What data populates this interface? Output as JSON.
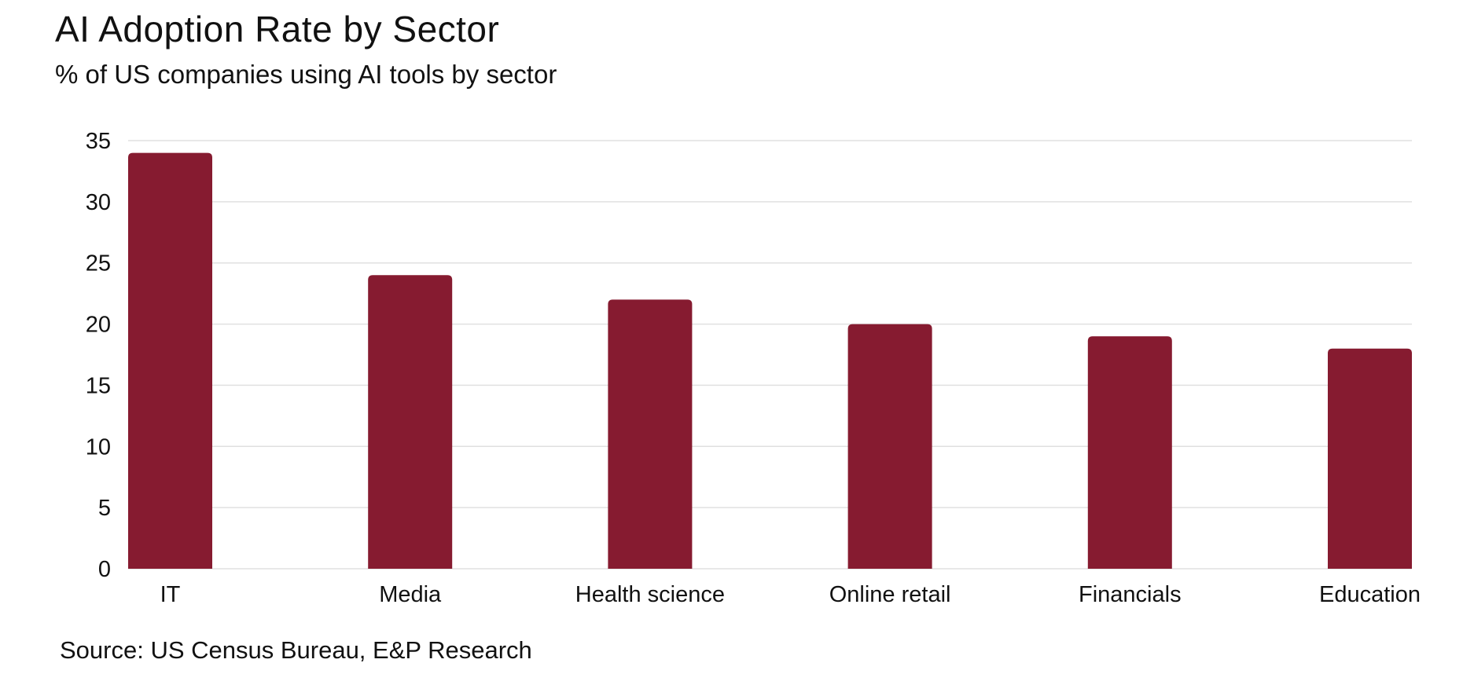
{
  "header": {
    "title": "AI Adoption Rate by Sector",
    "subtitle": "% of US companies using AI tools by sector"
  },
  "footer": {
    "source": "Source: US Census Bureau, E&P Research"
  },
  "colors": {
    "bar": "#861B30",
    "grid": "#e0e0e0",
    "text": "#111111"
  },
  "chart_data": {
    "type": "bar",
    "title": "AI Adoption Rate by Sector",
    "subtitle": "% of US companies using AI tools by sector",
    "xlabel": "",
    "ylabel": "",
    "categories": [
      "IT",
      "Media",
      "Health science",
      "Online retail",
      "Financials",
      "Education"
    ],
    "values": [
      34,
      24,
      22,
      20,
      19,
      18
    ],
    "ylim": [
      0,
      35
    ],
    "yticks": [
      0,
      5,
      10,
      15,
      20,
      25,
      30,
      35
    ],
    "grid": true,
    "legend": "none",
    "source": "Source: US Census Bureau, E&P Research"
  }
}
